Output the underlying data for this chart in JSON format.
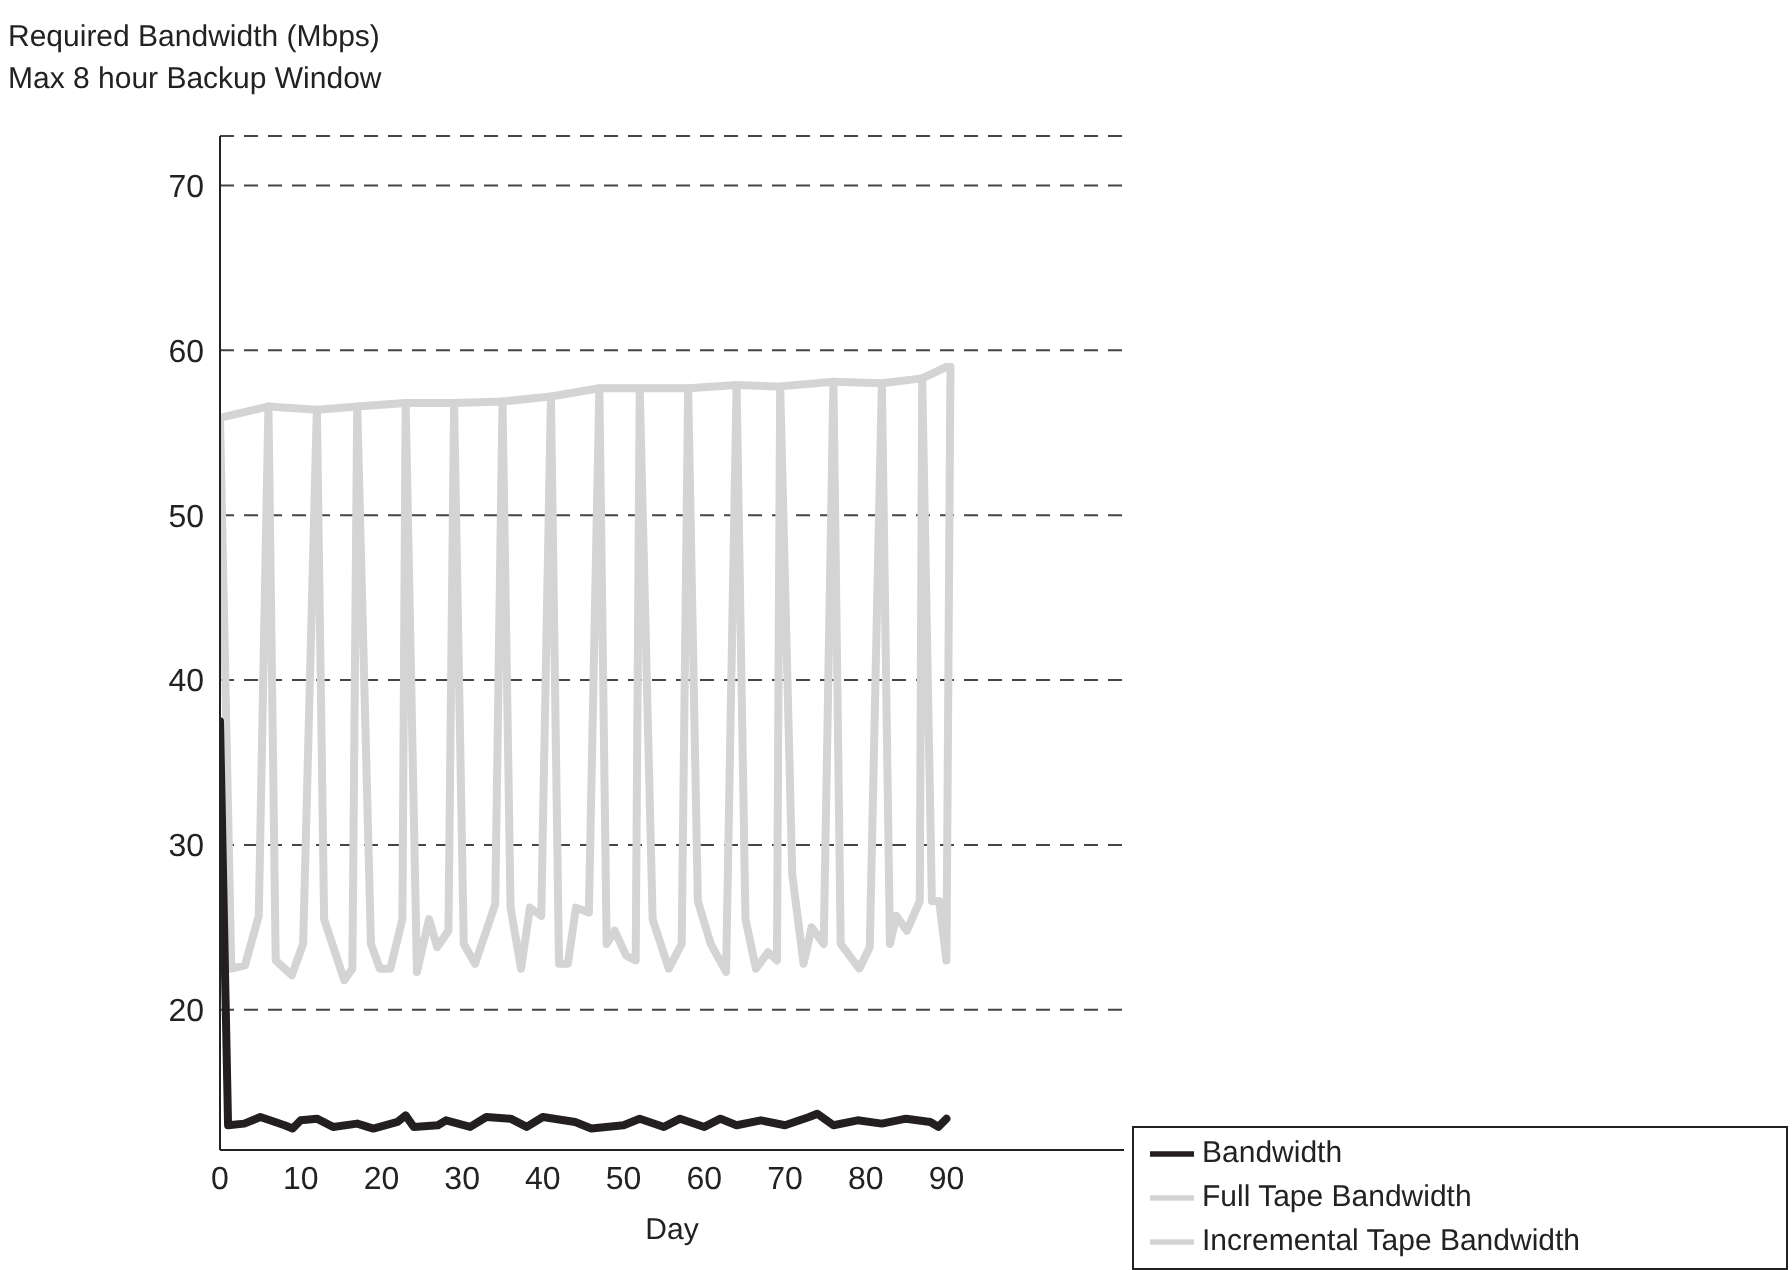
{
  "chart_data": {
    "type": "line",
    "ylabel": "Required Bandwidth (Mbps)\nMax 8 hour Backup Window",
    "xlabel": "Day",
    "xlim": [
      0,
      112
    ],
    "xticks": [
      0,
      10,
      20,
      30,
      40,
      50,
      60,
      70,
      80,
      90
    ],
    "ylim": [
      11.5,
      73
    ],
    "yticks": [
      20,
      30,
      40,
      50,
      60,
      70
    ],
    "grid": "y",
    "legend": "bottom right",
    "series": [
      {
        "name": "Full Tape Bandwidth",
        "color": "#d4d4d4",
        "x": [
          0,
          6,
          12,
          17,
          23,
          29,
          35,
          41,
          47,
          52,
          58,
          64,
          69,
          76,
          82,
          87,
          90
        ],
        "values": [
          55.9,
          56.6,
          56.4,
          56.6,
          56.8,
          56.8,
          56.9,
          57.2,
          57.7,
          57.7,
          57.7,
          57.9,
          57.8,
          58.1,
          58,
          58.3,
          59
        ]
      },
      {
        "name": "Incremental Tape Bandwidth",
        "color": "#d4d4d4",
        "x": [
          0,
          1.4,
          3.1,
          4.8,
          6,
          6.9,
          8.9,
          10.3,
          12,
          12.9,
          15.4,
          16.4,
          17,
          18.7,
          19.8,
          21.1,
          22.6,
          23,
          24.4,
          25.9,
          26.9,
          28.3,
          29,
          30.2,
          31.6,
          34.1,
          35,
          36,
          37.3,
          38.4,
          39.8,
          41,
          42,
          43.1,
          44.1,
          45.7,
          47,
          47.9,
          48.9,
          50.3,
          51.5,
          52,
          53.6,
          55.6,
          57.2,
          58,
          59.2,
          60.8,
          62.7,
          64,
          65.1,
          66.4,
          67.9,
          69,
          69.4,
          70.9,
          72.3,
          73.3,
          74.8,
          76,
          76.9,
          79.2,
          80.5,
          82,
          83,
          83.8,
          85.1,
          86.7,
          87,
          88.2,
          89.1,
          90,
          90.5
        ],
        "values": [
          55.9,
          22.5,
          22.7,
          25.7,
          56.6,
          23,
          22.1,
          24,
          56.4,
          25.5,
          21.8,
          22.5,
          56.6,
          24,
          22.5,
          22.5,
          25.5,
          56.8,
          22.3,
          25.5,
          23.8,
          24.8,
          56.8,
          24,
          22.8,
          26.4,
          56.9,
          26.2,
          22.5,
          26.2,
          25.7,
          57.2,
          22.8,
          22.8,
          26.2,
          25.9,
          57.7,
          24,
          24.8,
          23.3,
          23,
          57.7,
          25.5,
          22.5,
          24,
          57.7,
          26.6,
          24,
          22.3,
          57.9,
          25.5,
          22.5,
          23.5,
          23,
          57.8,
          28.2,
          22.8,
          25,
          24,
          58.1,
          24,
          22.5,
          23.8,
          58,
          24,
          25.7,
          24.8,
          26.6,
          58.3,
          26.6,
          26.6,
          23,
          59
        ]
      },
      {
        "name": "Bandwidth",
        "color": "#231f20",
        "x": [
          0,
          1,
          3,
          5,
          8,
          9,
          10,
          12,
          14,
          17,
          19,
          22,
          23,
          24,
          27,
          28,
          31,
          33,
          36,
          38,
          40,
          44,
          46,
          50,
          52,
          55,
          57,
          60,
          62,
          64,
          67,
          70,
          73,
          74,
          76,
          79,
          82,
          85,
          88,
          89,
          90
        ],
        "values": [
          37.5,
          13,
          13.1,
          13.5,
          13,
          12.8,
          13.3,
          13.4,
          12.9,
          13.1,
          12.8,
          13.2,
          13.6,
          12.9,
          13,
          13.3,
          12.9,
          13.5,
          13.4,
          12.9,
          13.5,
          13.2,
          12.8,
          13,
          13.4,
          12.9,
          13.4,
          12.9,
          13.4,
          13,
          13.3,
          13,
          13.5,
          13.7,
          13,
          13.3,
          13.1,
          13.4,
          13.2,
          12.9,
          13.4
        ]
      }
    ]
  }
}
